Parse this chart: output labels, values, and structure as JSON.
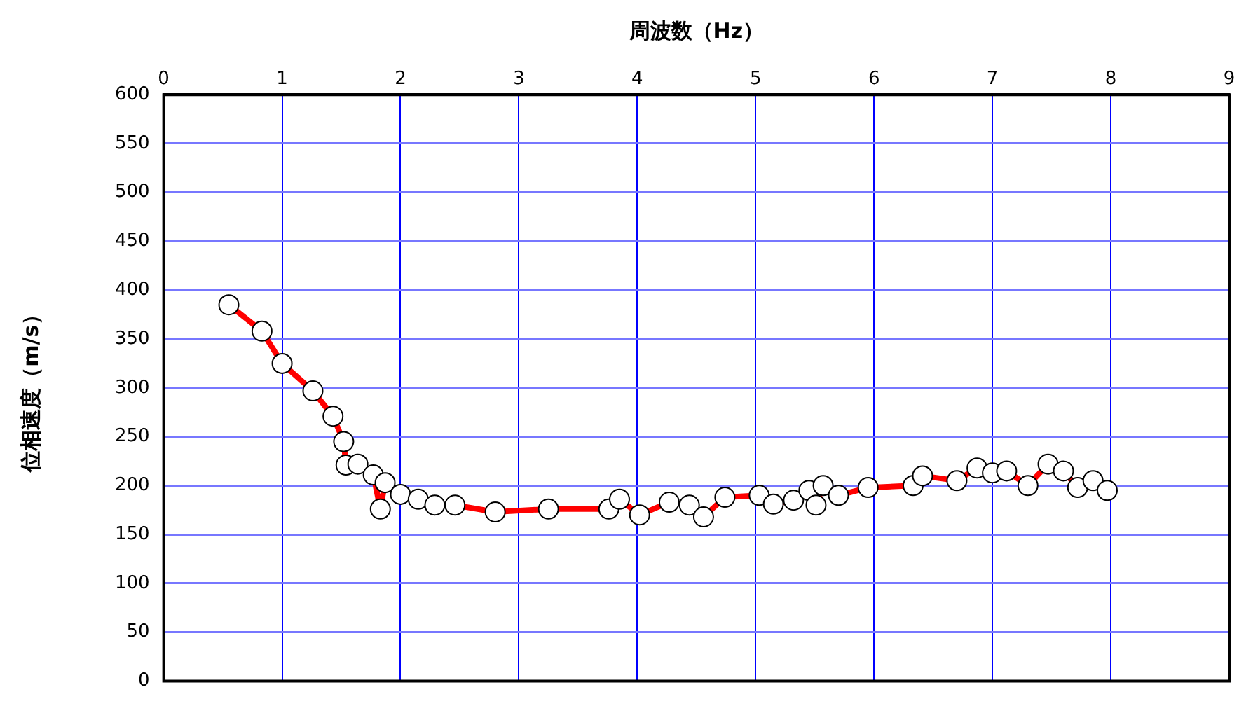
{
  "chart_data": {
    "type": "line",
    "xlabel": "周波数（Hz）",
    "ylabel": "位相速度（m/s）",
    "x": [
      0.55,
      0.83,
      1.0,
      1.26,
      1.43,
      1.52,
      1.54,
      1.64,
      1.77,
      1.83,
      1.87,
      2.0,
      2.15,
      2.29,
      2.46,
      2.8,
      3.25,
      3.76,
      3.85,
      4.02,
      4.27,
      4.44,
      4.56,
      4.74,
      5.03,
      5.15,
      5.32,
      5.45,
      5.51,
      5.57,
      5.7,
      5.95,
      6.33,
      6.41,
      6.7,
      6.87,
      7.0,
      7.12,
      7.3,
      7.47,
      7.6,
      7.72,
      7.85,
      7.97
    ],
    "series": [
      {
        "color": "#ff0000",
        "values": [
          385,
          358,
          325,
          297,
          271,
          245,
          221,
          222,
          211,
          176,
          203,
          191,
          186,
          180,
          180,
          173,
          176,
          176,
          186,
          170,
          183,
          180,
          168,
          188,
          190,
          181,
          185,
          195,
          180,
          200,
          190,
          198,
          200,
          210,
          205,
          218,
          213,
          215,
          200,
          222,
          215,
          198,
          205,
          195
        ]
      }
    ],
    "xlim": [
      0,
      9
    ],
    "xticks": [
      0,
      1,
      2,
      3,
      4,
      5,
      6,
      7,
      8,
      9
    ],
    "ylim": [
      0,
      600
    ],
    "yticks": [
      0,
      50,
      100,
      150,
      200,
      250,
      300,
      350,
      400,
      450,
      500,
      550,
      600
    ],
    "grid": true,
    "legend": false,
    "marker": "circle",
    "line_style": "solid"
  }
}
